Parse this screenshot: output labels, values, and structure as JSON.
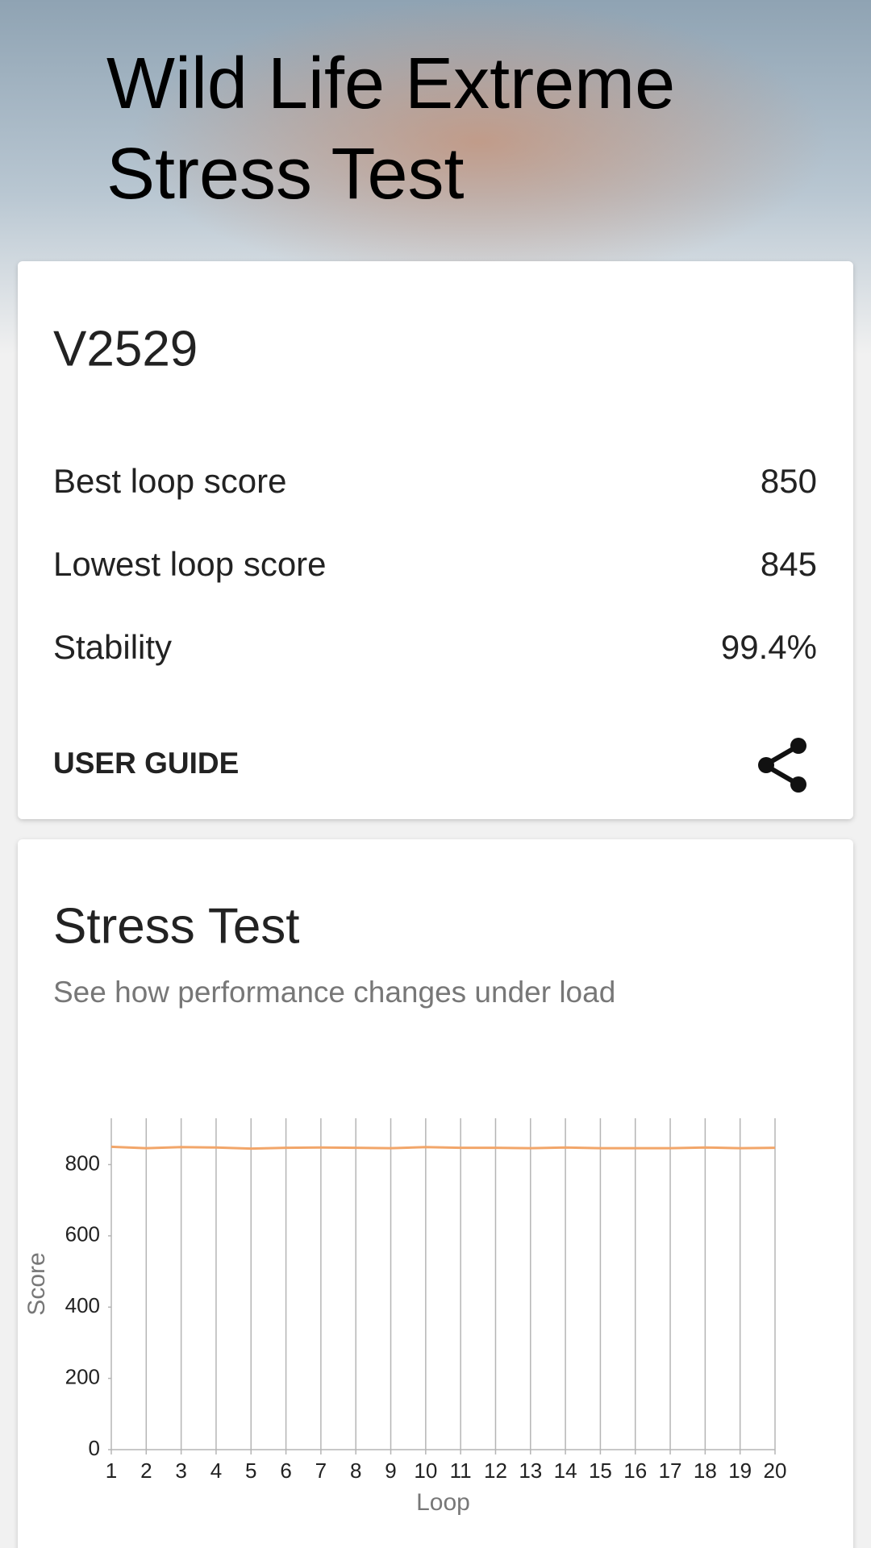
{
  "header": {
    "title_lines": [
      "Wild Life Extreme",
      "Stress Test"
    ]
  },
  "result_card": {
    "device": "V2529",
    "rows": [
      [
        "Best loop score",
        "850"
      ],
      [
        "Lowest loop score",
        "845"
      ],
      [
        "Stability",
        "99.4%"
      ]
    ],
    "user_guide": "USER GUIDE"
  },
  "stress_card": {
    "title": "Stress Test",
    "subtitle": "See how performance changes under load"
  },
  "chart_data": {
    "type": "line",
    "x": [
      1,
      2,
      3,
      4,
      5,
      6,
      7,
      8,
      9,
      10,
      11,
      12,
      13,
      14,
      15,
      16,
      17,
      18,
      19,
      20
    ],
    "series": [
      {
        "name": "Score",
        "color": "#f2a66a",
        "values": [
          850,
          846,
          849,
          848,
          845,
          847,
          848,
          847,
          846,
          849,
          847,
          847,
          846,
          848,
          846,
          846,
          846,
          848,
          846,
          847
        ]
      }
    ],
    "xlim": [
      1,
      20
    ],
    "xticks": [
      1,
      2,
      3,
      4,
      5,
      6,
      7,
      8,
      9,
      10,
      11,
      12,
      13,
      14,
      15,
      16,
      17,
      18,
      19,
      20
    ],
    "ylim": [
      0,
      930
    ],
    "yticks": [
      0,
      200,
      400,
      600,
      800
    ],
    "xlabel": "Loop",
    "ylabel": "Score",
    "grid": "x"
  }
}
